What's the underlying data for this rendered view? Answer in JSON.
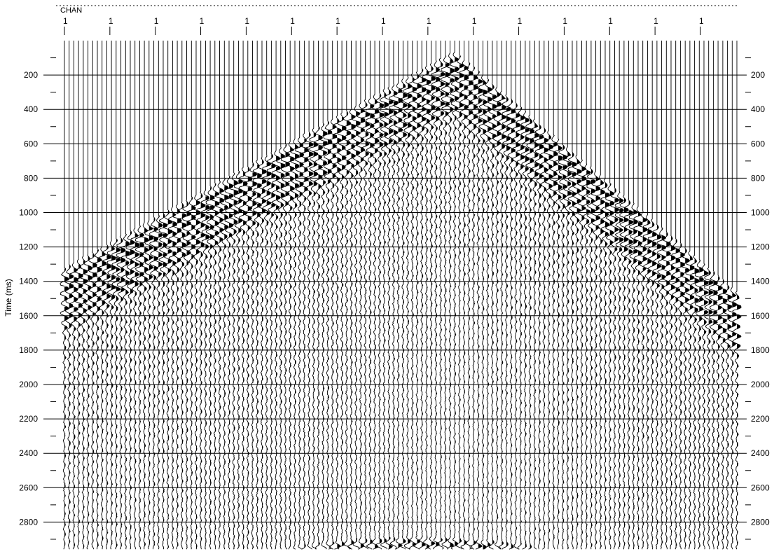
{
  "chart_data": {
    "type": "seismic-wiggle",
    "header_label": "CHAN",
    "chan_tick_labels": [
      "1",
      "1",
      "1",
      "1",
      "1",
      "1",
      "1",
      "1",
      "1",
      "1",
      "1",
      "1",
      "1",
      "1",
      "1"
    ],
    "ylabel": "Time (ms)",
    "y_ticks": [
      200,
      400,
      600,
      800,
      1000,
      1200,
      1400,
      1600,
      1800,
      2000,
      2200,
      2400,
      2600,
      2800
    ],
    "ylim": [
      0,
      2950
    ],
    "y_reversed": true,
    "grid": true,
    "trace_count": 144,
    "events": [
      {
        "kind": "direct-arrival-left",
        "apex_trace_fraction": 0.58,
        "apex_time_ms": 100,
        "edge_time_ms": 1360
      },
      {
        "kind": "direct-arrival-right",
        "apex_trace_fraction": 0.58,
        "apex_time_ms": 100,
        "edge_time_ms": 1500
      },
      {
        "kind": "deep-reflection",
        "apex_trace_fraction": 0.52,
        "apex_time_ms": 2930,
        "edge_time_ms": 3200
      }
    ],
    "wiggle_fill": "#000000"
  }
}
